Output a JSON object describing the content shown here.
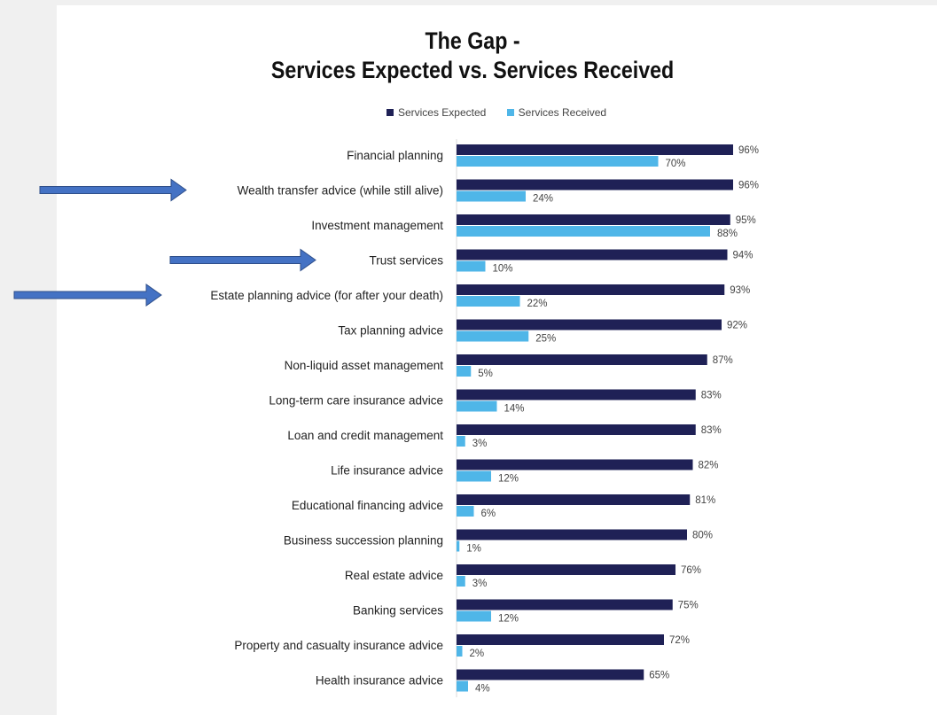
{
  "chart_data": {
    "type": "bar",
    "orientation": "horizontal",
    "title": [
      "The Gap -",
      "Services Expected vs. Services Received"
    ],
    "categories": [
      "Financial planning",
      "Wealth transfer advice (while still alive)",
      "Investment management",
      "Trust services",
      "Estate planning advice (for after your death)",
      "Tax planning advice",
      "Non-liquid asset management",
      "Long-term care insurance advice",
      "Loan and credit management",
      "Life insurance advice",
      "Educational financing advice",
      "Business succession planning",
      "Real estate advice",
      "Banking services",
      "Property and casualty insurance advice",
      "Health insurance advice"
    ],
    "series": [
      {
        "name": "Services Expected",
        "color": "#1f2156",
        "values": [
          96,
          96,
          95,
          94,
          93,
          92,
          87,
          83,
          83,
          82,
          81,
          80,
          76,
          75,
          72,
          65
        ]
      },
      {
        "name": "Services Received",
        "color": "#4fb6e8",
        "values": [
          70,
          24,
          88,
          10,
          22,
          25,
          5,
          14,
          3,
          12,
          6,
          1,
          3,
          12,
          2,
          4
        ]
      }
    ],
    "value_format": "percent",
    "xlim": [
      0,
      100
    ],
    "legend_position": "top",
    "grid": false,
    "annotations": [
      {
        "type": "arrow",
        "points_to": "Wealth transfer advice (while still alive)",
        "color": "#4472c4"
      },
      {
        "type": "arrow",
        "points_to": "Trust services",
        "color": "#4472c4"
      },
      {
        "type": "arrow",
        "points_to": "Estate planning advice (for after your death)",
        "color": "#4472c4"
      }
    ]
  }
}
